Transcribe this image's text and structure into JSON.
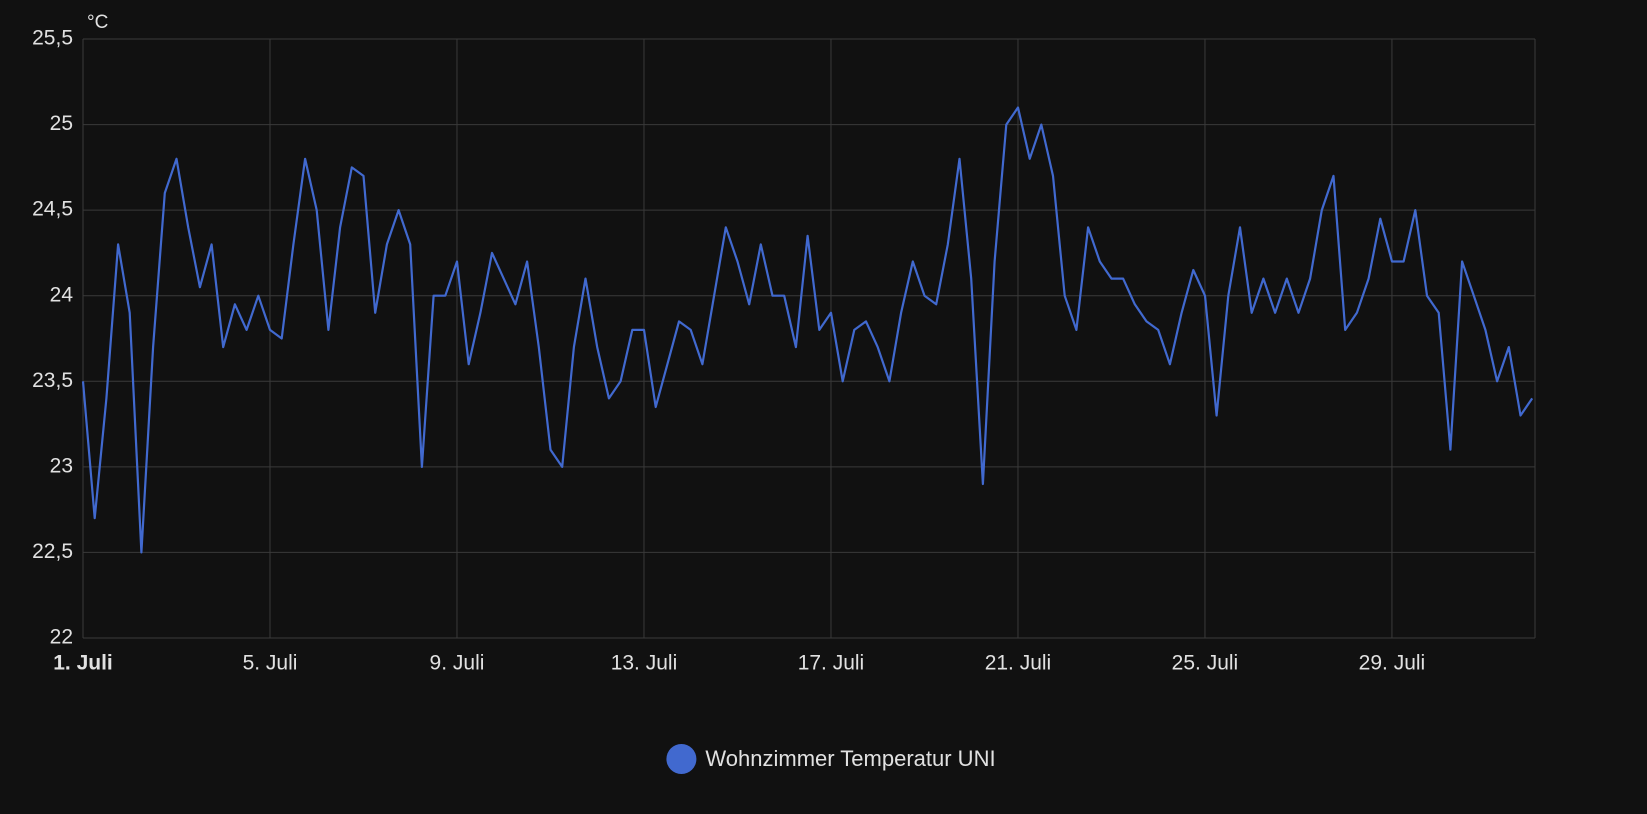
{
  "chart_data": {
    "type": "line",
    "y_label": "°C",
    "x": [
      1,
      1.25,
      1.5,
      1.75,
      2,
      2.25,
      2.5,
      2.75,
      3,
      3.25,
      3.5,
      3.75,
      4,
      4.25,
      4.5,
      4.75,
      5,
      5.25,
      5.5,
      5.75,
      6,
      6.25,
      6.5,
      6.75,
      7,
      7.25,
      7.5,
      7.75,
      8,
      8.25,
      8.5,
      8.75,
      9,
      9.25,
      9.5,
      9.75,
      10,
      10.25,
      10.5,
      10.75,
      11,
      11.25,
      11.5,
      11.75,
      12,
      12.25,
      12.5,
      12.75,
      13,
      13.25,
      13.5,
      13.75,
      14,
      14.25,
      14.5,
      14.75,
      15,
      15.25,
      15.5,
      15.75,
      16,
      16.25,
      16.5,
      16.75,
      17,
      17.25,
      17.5,
      17.75,
      18,
      18.25,
      18.5,
      18.75,
      19,
      19.25,
      19.5,
      19.75,
      20,
      20.25,
      20.5,
      20.75,
      21,
      21.25,
      21.5,
      21.75,
      22,
      22.25,
      22.5,
      22.75,
      23,
      23.25,
      23.5,
      23.75,
      24,
      24.25,
      24.5,
      24.75,
      25,
      25.25,
      25.5,
      25.75,
      26,
      26.25,
      26.5,
      26.75,
      27,
      27.25,
      27.5,
      27.75,
      28,
      28.25,
      28.5,
      28.75,
      29,
      29.25,
      29.5,
      29.75,
      30,
      30.25,
      30.5,
      30.75,
      31,
      31.25,
      31.5,
      31.75,
      32
    ],
    "series": [
      {
        "name": "Wohnzimmer Temperatur UNI",
        "color": "#4169cf",
        "values": [
          23.5,
          22.7,
          23.4,
          24.3,
          23.9,
          22.5,
          23.7,
          24.6,
          24.8,
          24.4,
          24.05,
          24.3,
          23.7,
          23.95,
          23.8,
          24.0,
          23.8,
          23.75,
          24.3,
          24.8,
          24.5,
          23.8,
          24.4,
          24.75,
          24.7,
          23.9,
          24.3,
          24.5,
          24.3,
          23.0,
          24.0,
          24.0,
          24.2,
          23.6,
          23.9,
          24.25,
          24.1,
          23.95,
          24.2,
          23.7,
          23.1,
          23.0,
          23.7,
          24.1,
          23.7,
          23.4,
          23.5,
          23.8,
          23.8,
          23.35,
          23.6,
          23.85,
          23.8,
          23.6,
          24.0,
          24.4,
          24.2,
          23.95,
          24.3,
          24.0,
          24.0,
          23.7,
          24.35,
          23.8,
          23.9,
          23.5,
          23.8,
          23.85,
          23.7,
          23.5,
          23.9,
          24.2,
          24.0,
          23.95,
          24.3,
          24.8,
          24.1,
          22.9,
          24.2,
          25.0,
          25.1,
          24.8,
          25.0,
          24.7,
          24.0,
          23.8,
          24.4,
          24.2,
          24.1,
          24.1,
          23.95,
          23.85,
          23.8,
          23.6,
          23.9,
          24.15,
          24.0,
          23.3,
          24.0,
          24.4,
          23.9,
          24.1,
          23.9,
          24.1,
          23.9,
          24.1,
          24.5,
          24.7,
          23.8,
          23.9,
          24.1,
          24.45,
          24.2,
          24.2,
          24.5,
          24.0,
          23.9,
          23.1,
          24.2,
          24.0,
          23.8,
          23.5,
          23.7,
          23.3,
          23.4
        ]
      }
    ],
    "xlim": [
      1,
      32.06
    ],
    "xticks": [
      {
        "value": 1,
        "label": "1. Juli"
      },
      {
        "value": 5,
        "label": "5. Juli"
      },
      {
        "value": 9,
        "label": "9. Juli"
      },
      {
        "value": 13,
        "label": "13. Juli"
      },
      {
        "value": 17,
        "label": "17. Juli"
      },
      {
        "value": 21,
        "label": "21. Juli"
      },
      {
        "value": 25,
        "label": "25. Juli"
      },
      {
        "value": 29,
        "label": "29. Juli"
      }
    ],
    "ylim": [
      22,
      25.5
    ],
    "yticks": [
      22,
      {
        "value": 22.5,
        "label": "22,5"
      },
      23,
      {
        "value": 23.5,
        "label": "23,5"
      },
      24,
      {
        "value": 24.5,
        "label": "24,5"
      },
      25,
      {
        "value": 25.5,
        "label": "25,5"
      }
    ],
    "grid": true,
    "legend": "bottom"
  }
}
